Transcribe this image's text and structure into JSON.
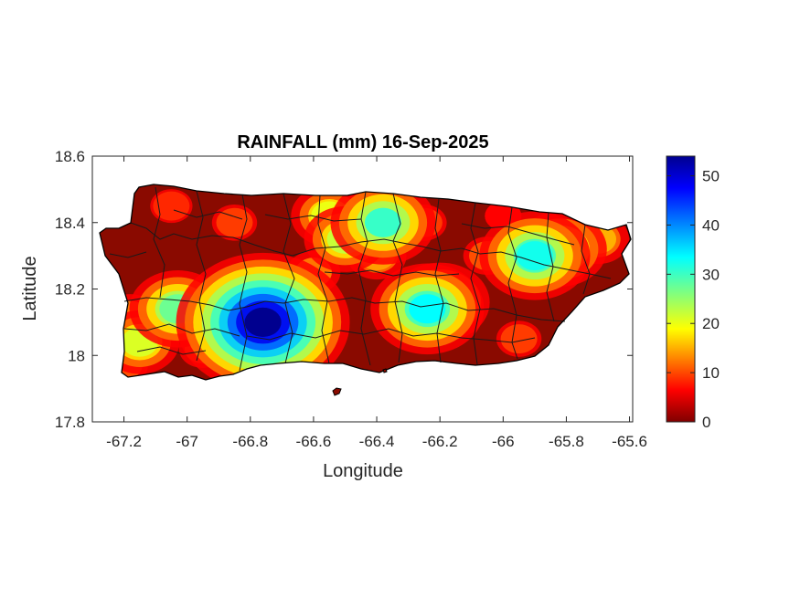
{
  "chart_data": {
    "type": "heatmap",
    "title": "RAINFALL (mm) 16-Sep-2025",
    "xlabel": "Longitude",
    "ylabel": "Latitude",
    "xlim": [
      -67.3,
      -65.59
    ],
    "ylim": [
      17.8,
      18.6
    ],
    "xticks": [
      {
        "value": -67.2,
        "label": "-67.2"
      },
      {
        "value": -67.0,
        "label": "-67"
      },
      {
        "value": -66.8,
        "label": "-66.8"
      },
      {
        "value": -66.6,
        "label": "-66.6"
      },
      {
        "value": -66.4,
        "label": "-66.4"
      },
      {
        "value": -66.2,
        "label": "-66.2"
      },
      {
        "value": -66.0,
        "label": "-66"
      },
      {
        "value": -65.8,
        "label": "-65.8"
      },
      {
        "value": -65.6,
        "label": "-65.6"
      }
    ],
    "yticks": [
      {
        "value": 17.8,
        "label": "17.8"
      },
      {
        "value": 18.0,
        "label": "18"
      },
      {
        "value": 18.2,
        "label": "18.2"
      },
      {
        "value": 18.4,
        "label": "18.4"
      },
      {
        "value": 18.6,
        "label": "18.6"
      }
    ],
    "colorbar": {
      "colormap": "jet (reversed: dark red = 0, dark blue = max)",
      "range": [
        0,
        54
      ],
      "ticks": [
        {
          "value": 0,
          "label": "0"
        },
        {
          "value": 10,
          "label": "10"
        },
        {
          "value": 20,
          "label": "20"
        },
        {
          "value": 30,
          "label": "30"
        },
        {
          "value": 40,
          "label": "40"
        },
        {
          "value": 50,
          "label": "50"
        }
      ]
    },
    "rain_hotspots_mm": [
      {
        "lon": -66.76,
        "lat": 18.1,
        "value": 54
      },
      {
        "lon": -66.82,
        "lat": 18.09,
        "value": 30
      },
      {
        "lon": -66.24,
        "lat": 18.14,
        "value": 33
      },
      {
        "lon": -66.2,
        "lat": 18.16,
        "value": 28
      },
      {
        "lon": -67.03,
        "lat": 18.14,
        "value": 27
      },
      {
        "lon": -67.15,
        "lat": 18.04,
        "value": 21
      },
      {
        "lon": -65.9,
        "lat": 18.3,
        "value": 32
      },
      {
        "lon": -65.82,
        "lat": 18.32,
        "value": 26
      },
      {
        "lon": -66.38,
        "lat": 18.4,
        "value": 30
      },
      {
        "lon": -66.5,
        "lat": 18.35,
        "value": 22
      },
      {
        "lon": -66.55,
        "lat": 18.42,
        "value": 20
      },
      {
        "lon": -65.7,
        "lat": 18.35,
        "value": 15
      },
      {
        "lon": -67.18,
        "lat": 18.12,
        "value": 12
      },
      {
        "lon": -66.95,
        "lat": 18.02,
        "value": 10
      },
      {
        "lon": -66.6,
        "lat": 18.25,
        "value": 12
      },
      {
        "lon": -66.4,
        "lat": 18.3,
        "value": 14
      },
      {
        "lon": -66.25,
        "lat": 18.4,
        "value": 9
      },
      {
        "lon": -66.85,
        "lat": 18.4,
        "value": 9
      },
      {
        "lon": -67.05,
        "lat": 18.45,
        "value": 8
      },
      {
        "lon": -66.05,
        "lat": 18.3,
        "value": 10
      },
      {
        "lon": -66.0,
        "lat": 18.42,
        "value": 6
      },
      {
        "lon": -65.95,
        "lat": 18.05,
        "value": 9
      },
      {
        "lon": -66.7,
        "lat": 18.0,
        "value": 6
      },
      {
        "lon": -67.2,
        "lat": 17.97,
        "value": 10
      }
    ]
  }
}
